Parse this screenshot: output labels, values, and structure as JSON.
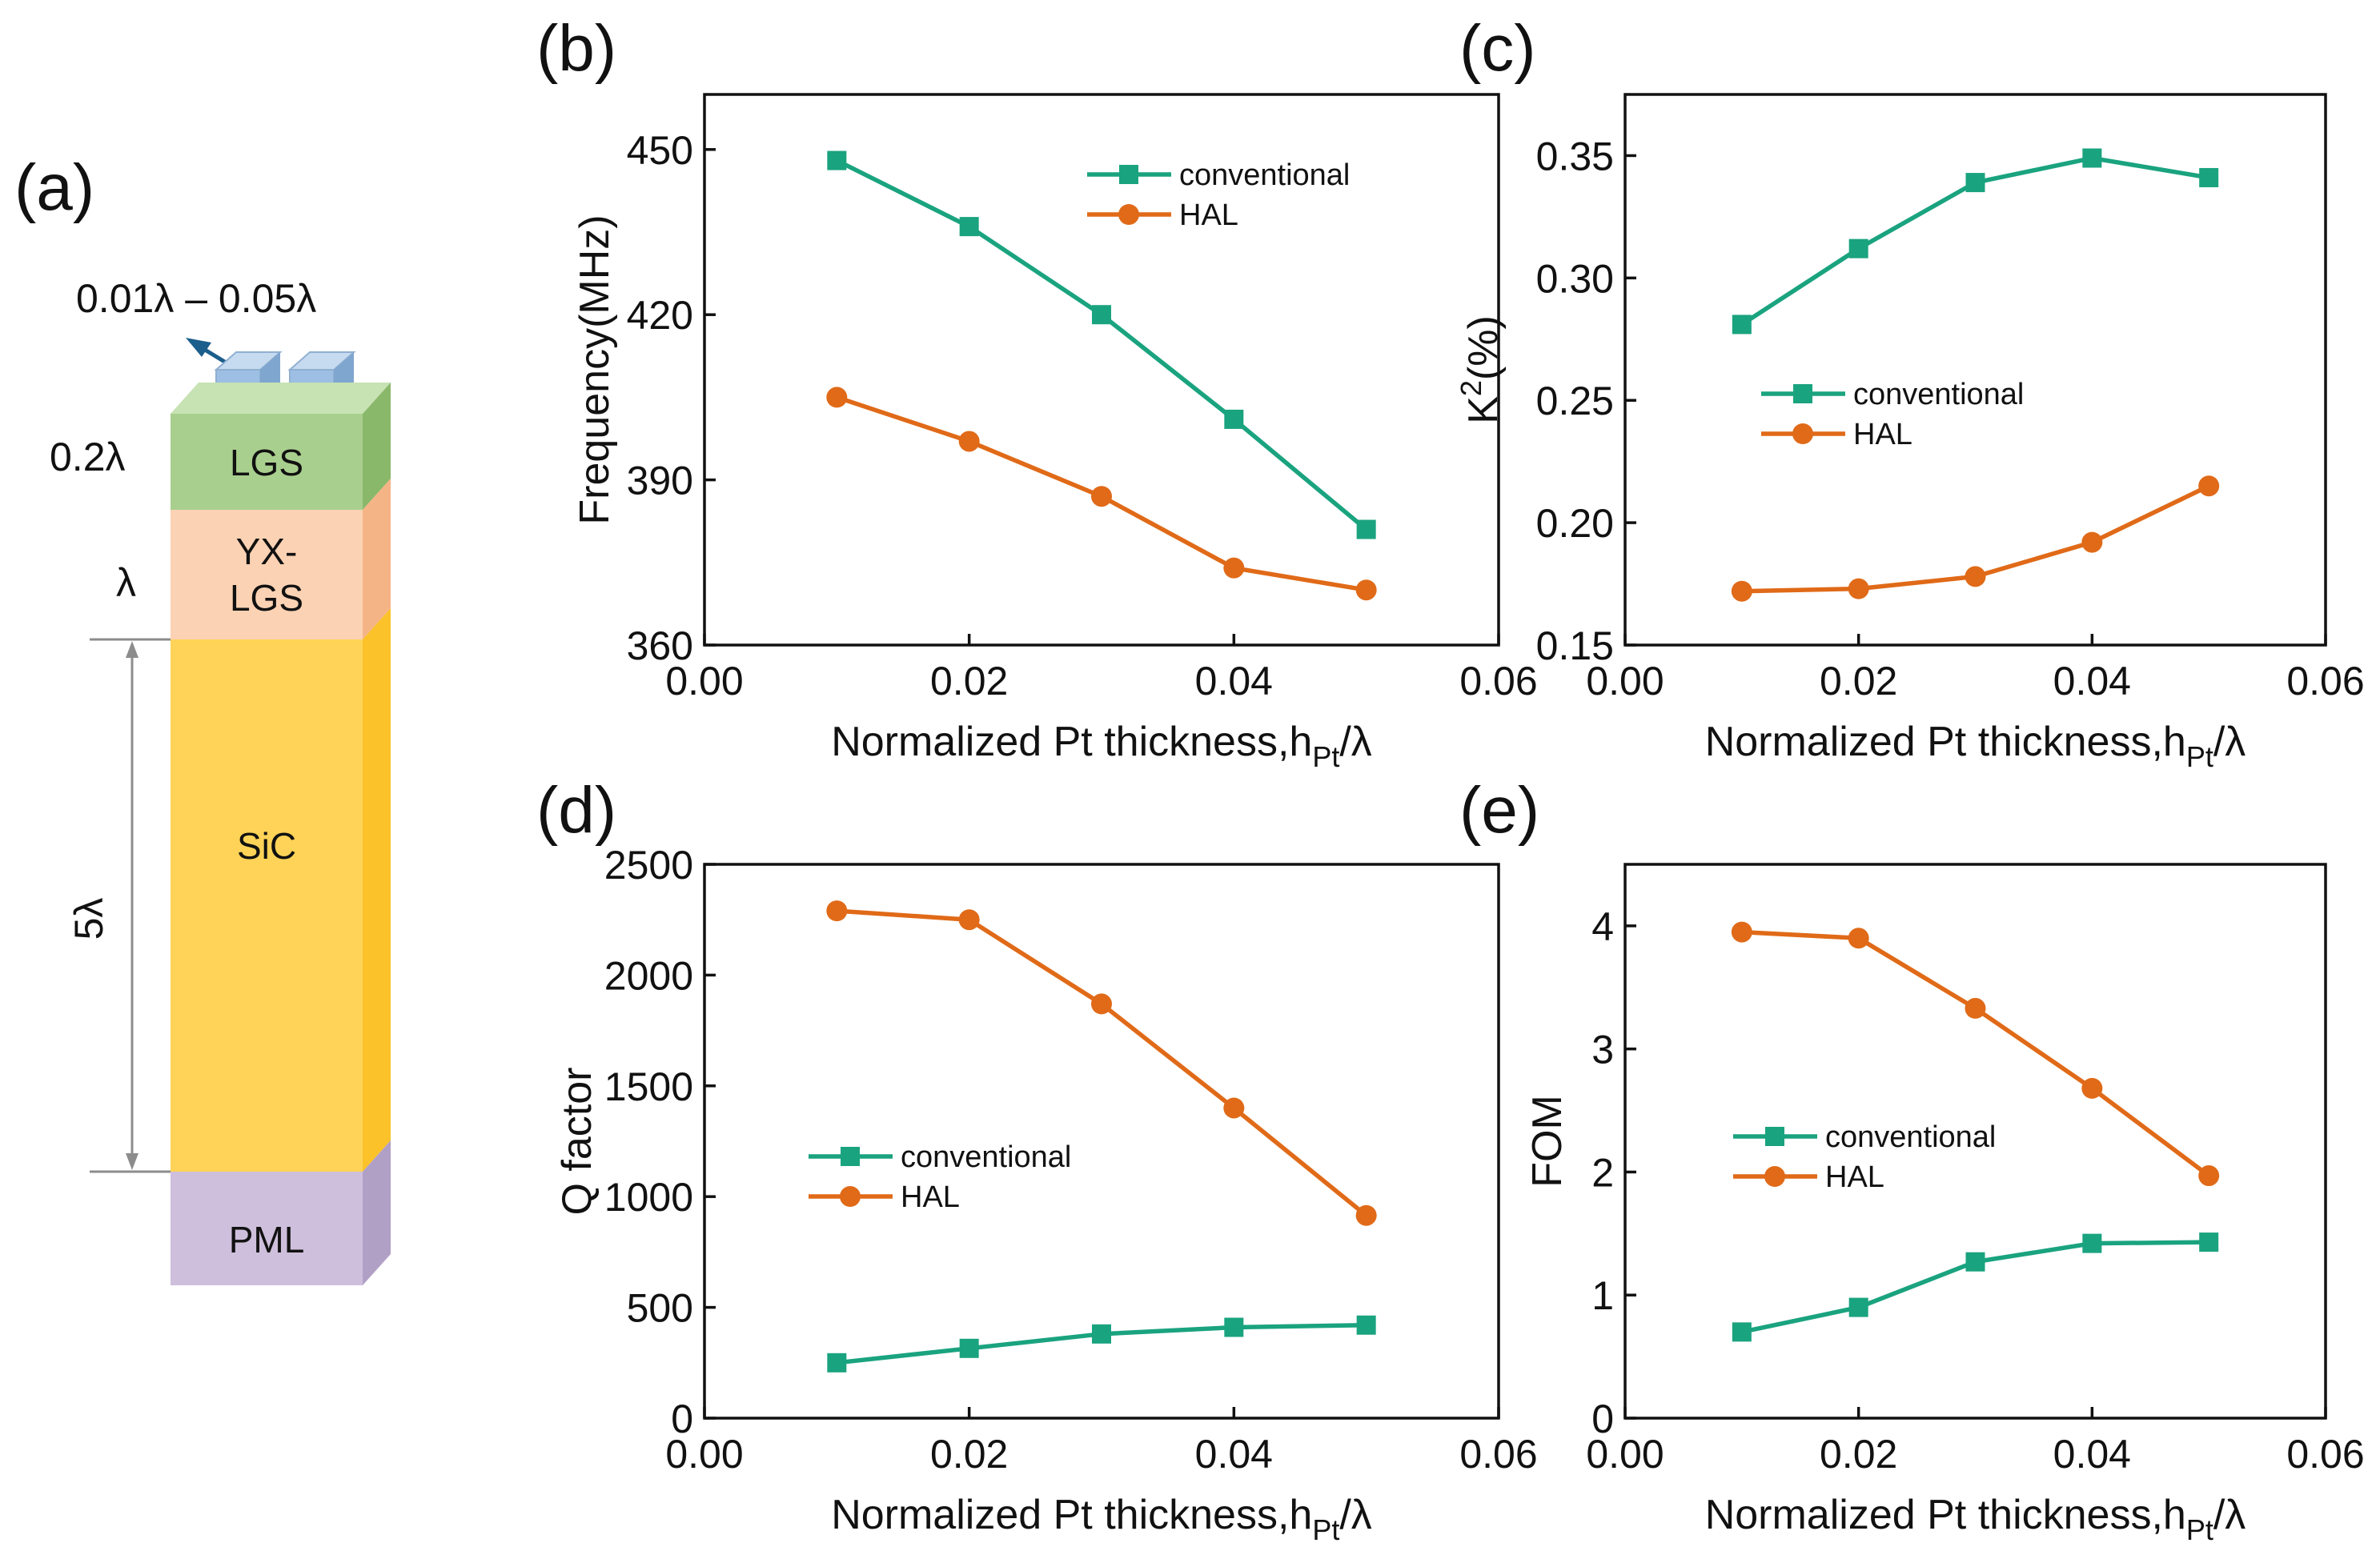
{
  "stack": {
    "panel_label": "(a)",
    "electrode_label": "0.01λ – 0.05λ",
    "layers": [
      {
        "name": "LGS",
        "lines": [
          "LGS"
        ],
        "thickness_label": "0.2λ",
        "color": "#a9cf8e"
      },
      {
        "name": "YX-LGS",
        "lines": [
          "YX-",
          "LGS"
        ],
        "thickness_label": "λ",
        "color": "#fbd2b3"
      },
      {
        "name": "SiC",
        "lines": [
          "SiC"
        ],
        "thickness_label": "5λ",
        "color": "#ffd357"
      },
      {
        "name": "PML",
        "lines": [
          "PML"
        ],
        "thickness_label": "",
        "color": "#cebfdc"
      }
    ]
  },
  "colors": {
    "conventional": "#1aa37f",
    "HAL": "#e06a18"
  },
  "chart_data": [
    {
      "id": "b",
      "panel_label": "(b)",
      "type": "line",
      "xlabel": "Normalized Pt thickness,h",
      "xlabel_sub": "Pt",
      "xlabel_tail": "/λ",
      "ylabel": "Frequency(MHz)",
      "xlim": [
        0,
        0.06
      ],
      "ylim": [
        360,
        460
      ],
      "xticks": [
        "0.00",
        "0.02",
        "0.04",
        "0.06"
      ],
      "xtick_values": [
        0,
        0.02,
        0.04,
        0.06
      ],
      "yticks": [
        "360",
        "390",
        "420",
        "450"
      ],
      "ytick_values": [
        360,
        390,
        420,
        450
      ],
      "x": [
        0.01,
        0.02,
        0.03,
        0.04,
        0.05
      ],
      "legend_position": "top-right",
      "series": [
        {
          "name": "conventional",
          "marker": "square",
          "values": [
            448,
            436,
            420,
            401,
            381
          ]
        },
        {
          "name": "HAL",
          "marker": "circle",
          "values": [
            405,
            397,
            387,
            374,
            370
          ]
        }
      ]
    },
    {
      "id": "c",
      "panel_label": "(c)",
      "type": "line",
      "xlabel": "Normalized Pt thickness,h",
      "xlabel_sub": "Pt",
      "xlabel_tail": "/λ",
      "ylabel": "K",
      "ylabel_sup": "2",
      "ylabel_tail": "(%)",
      "xlim": [
        0,
        0.06
      ],
      "ylim": [
        0.15,
        0.375
      ],
      "xticks": [
        "0.00",
        "0.02",
        "0.04",
        "0.06"
      ],
      "xtick_values": [
        0,
        0.02,
        0.04,
        0.06
      ],
      "yticks": [
        "0.15",
        "0.20",
        "0.25",
        "0.30",
        "0.35"
      ],
      "ytick_values": [
        0.15,
        0.2,
        0.25,
        0.3,
        0.35
      ],
      "x": [
        0.01,
        0.02,
        0.03,
        0.04,
        0.05
      ],
      "legend_position": "center-left",
      "series": [
        {
          "name": "conventional",
          "marker": "square",
          "values": [
            0.281,
            0.312,
            0.339,
            0.349,
            0.341
          ]
        },
        {
          "name": "HAL",
          "marker": "circle",
          "values": [
            0.172,
            0.173,
            0.178,
            0.192,
            0.215
          ]
        }
      ]
    },
    {
      "id": "d",
      "panel_label": "(d)",
      "type": "line",
      "xlabel": "Normalized Pt thickness,h",
      "xlabel_sub": "Pt",
      "xlabel_tail": "/λ",
      "ylabel": "Q factor",
      "xlim": [
        0,
        0.06
      ],
      "ylim": [
        0,
        2500
      ],
      "xticks": [
        "0.00",
        "0.02",
        "0.04",
        "0.06"
      ],
      "xtick_values": [
        0,
        0.02,
        0.04,
        0.06
      ],
      "yticks": [
        "0",
        "500",
        "1000",
        "1500",
        "2000",
        "2500"
      ],
      "ytick_values": [
        0,
        500,
        1000,
        1500,
        2000,
        2500
      ],
      "x": [
        0.01,
        0.02,
        0.03,
        0.04,
        0.05
      ],
      "legend_position": "center-left",
      "series": [
        {
          "name": "conventional",
          "marker": "square",
          "values": [
            250,
            315,
            380,
            410,
            420
          ]
        },
        {
          "name": "HAL",
          "marker": "circle",
          "values": [
            2290,
            2250,
            1870,
            1400,
            915
          ]
        }
      ]
    },
    {
      "id": "e",
      "panel_label": "(e)",
      "type": "line",
      "xlabel": "Normalized Pt thickness,h",
      "xlabel_sub": "Pt",
      "xlabel_tail": "/λ",
      "ylabel": "FOM",
      "xlim": [
        0,
        0.06
      ],
      "ylim": [
        0,
        4.5
      ],
      "xticks": [
        "0.00",
        "0.02",
        "0.04",
        "0.06"
      ],
      "xtick_values": [
        0,
        0.02,
        0.04,
        0.06
      ],
      "yticks": [
        "0",
        "1",
        "2",
        "3",
        "4"
      ],
      "ytick_values": [
        0,
        1,
        2,
        3,
        4
      ],
      "x": [
        0.01,
        0.02,
        0.03,
        0.04,
        0.05
      ],
      "legend_position": "center-left",
      "series": [
        {
          "name": "conventional",
          "marker": "square",
          "values": [
            0.7,
            0.9,
            1.27,
            1.42,
            1.43
          ]
        },
        {
          "name": "HAL",
          "marker": "circle",
          "values": [
            3.95,
            3.9,
            3.33,
            2.68,
            1.97
          ]
        }
      ]
    }
  ]
}
